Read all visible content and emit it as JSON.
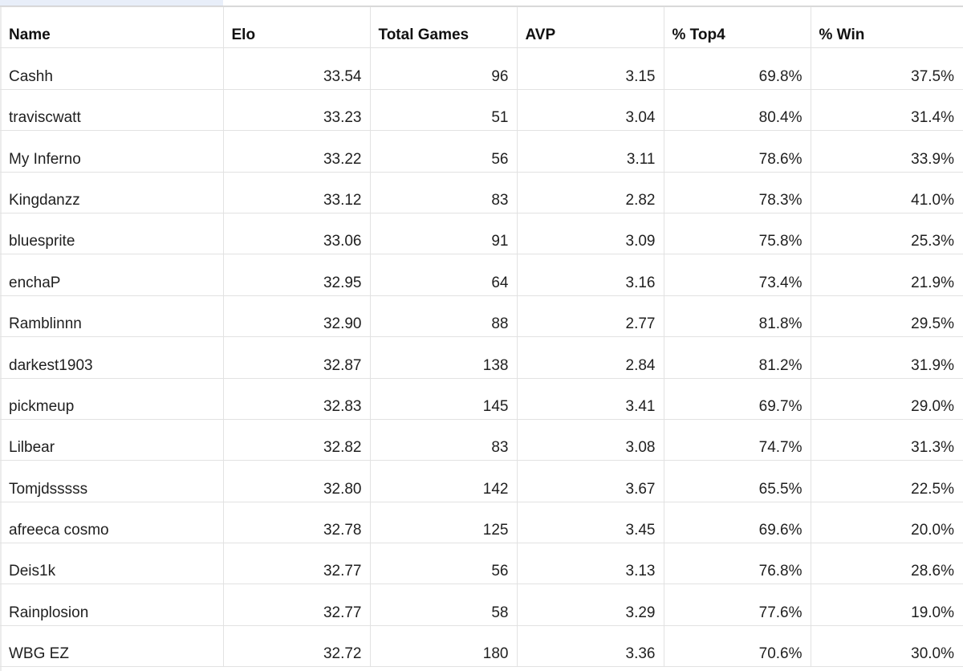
{
  "table": {
    "columns": [
      "Name",
      "Elo",
      "Total Games",
      "AVP",
      "% Top4",
      "% Win"
    ],
    "rows": [
      [
        "Cashh",
        "33.54",
        "96",
        "3.15",
        "69.8%",
        "37.5%"
      ],
      [
        "traviscwatt",
        "33.23",
        "51",
        "3.04",
        "80.4%",
        "31.4%"
      ],
      [
        "My Inferno",
        "33.22",
        "56",
        "3.11",
        "78.6%",
        "33.9%"
      ],
      [
        "Kingdanzz",
        "33.12",
        "83",
        "2.82",
        "78.3%",
        "41.0%"
      ],
      [
        "bluesprite",
        "33.06",
        "91",
        "3.09",
        "75.8%",
        "25.3%"
      ],
      [
        "enchaP",
        "32.95",
        "64",
        "3.16",
        "73.4%",
        "21.9%"
      ],
      [
        "Ramblinnn",
        "32.90",
        "88",
        "2.77",
        "81.8%",
        "29.5%"
      ],
      [
        "darkest1903",
        "32.87",
        "138",
        "2.84",
        "81.2%",
        "31.9%"
      ],
      [
        "pickmeup",
        "32.83",
        "145",
        "3.41",
        "69.7%",
        "29.0%"
      ],
      [
        "Lilbear",
        "32.82",
        "83",
        "3.08",
        "74.7%",
        "31.3%"
      ],
      [
        "Tomjdsssss",
        "32.80",
        "142",
        "3.67",
        "65.5%",
        "22.5%"
      ],
      [
        "afreeca cosmo",
        "32.78",
        "125",
        "3.45",
        "69.6%",
        "20.0%"
      ],
      [
        "Deis1k",
        "32.77",
        "56",
        "3.13",
        "76.8%",
        "28.6%"
      ],
      [
        "Rainplosion",
        "32.77",
        "58",
        "3.29",
        "77.6%",
        "19.0%"
      ],
      [
        "WBG EZ",
        "32.72",
        "180",
        "3.36",
        "70.6%",
        "30.0%"
      ]
    ]
  },
  "colors": {
    "gridline": "#e2e2e2",
    "text": "#1f1f1f",
    "selection": "#e8eef9"
  }
}
